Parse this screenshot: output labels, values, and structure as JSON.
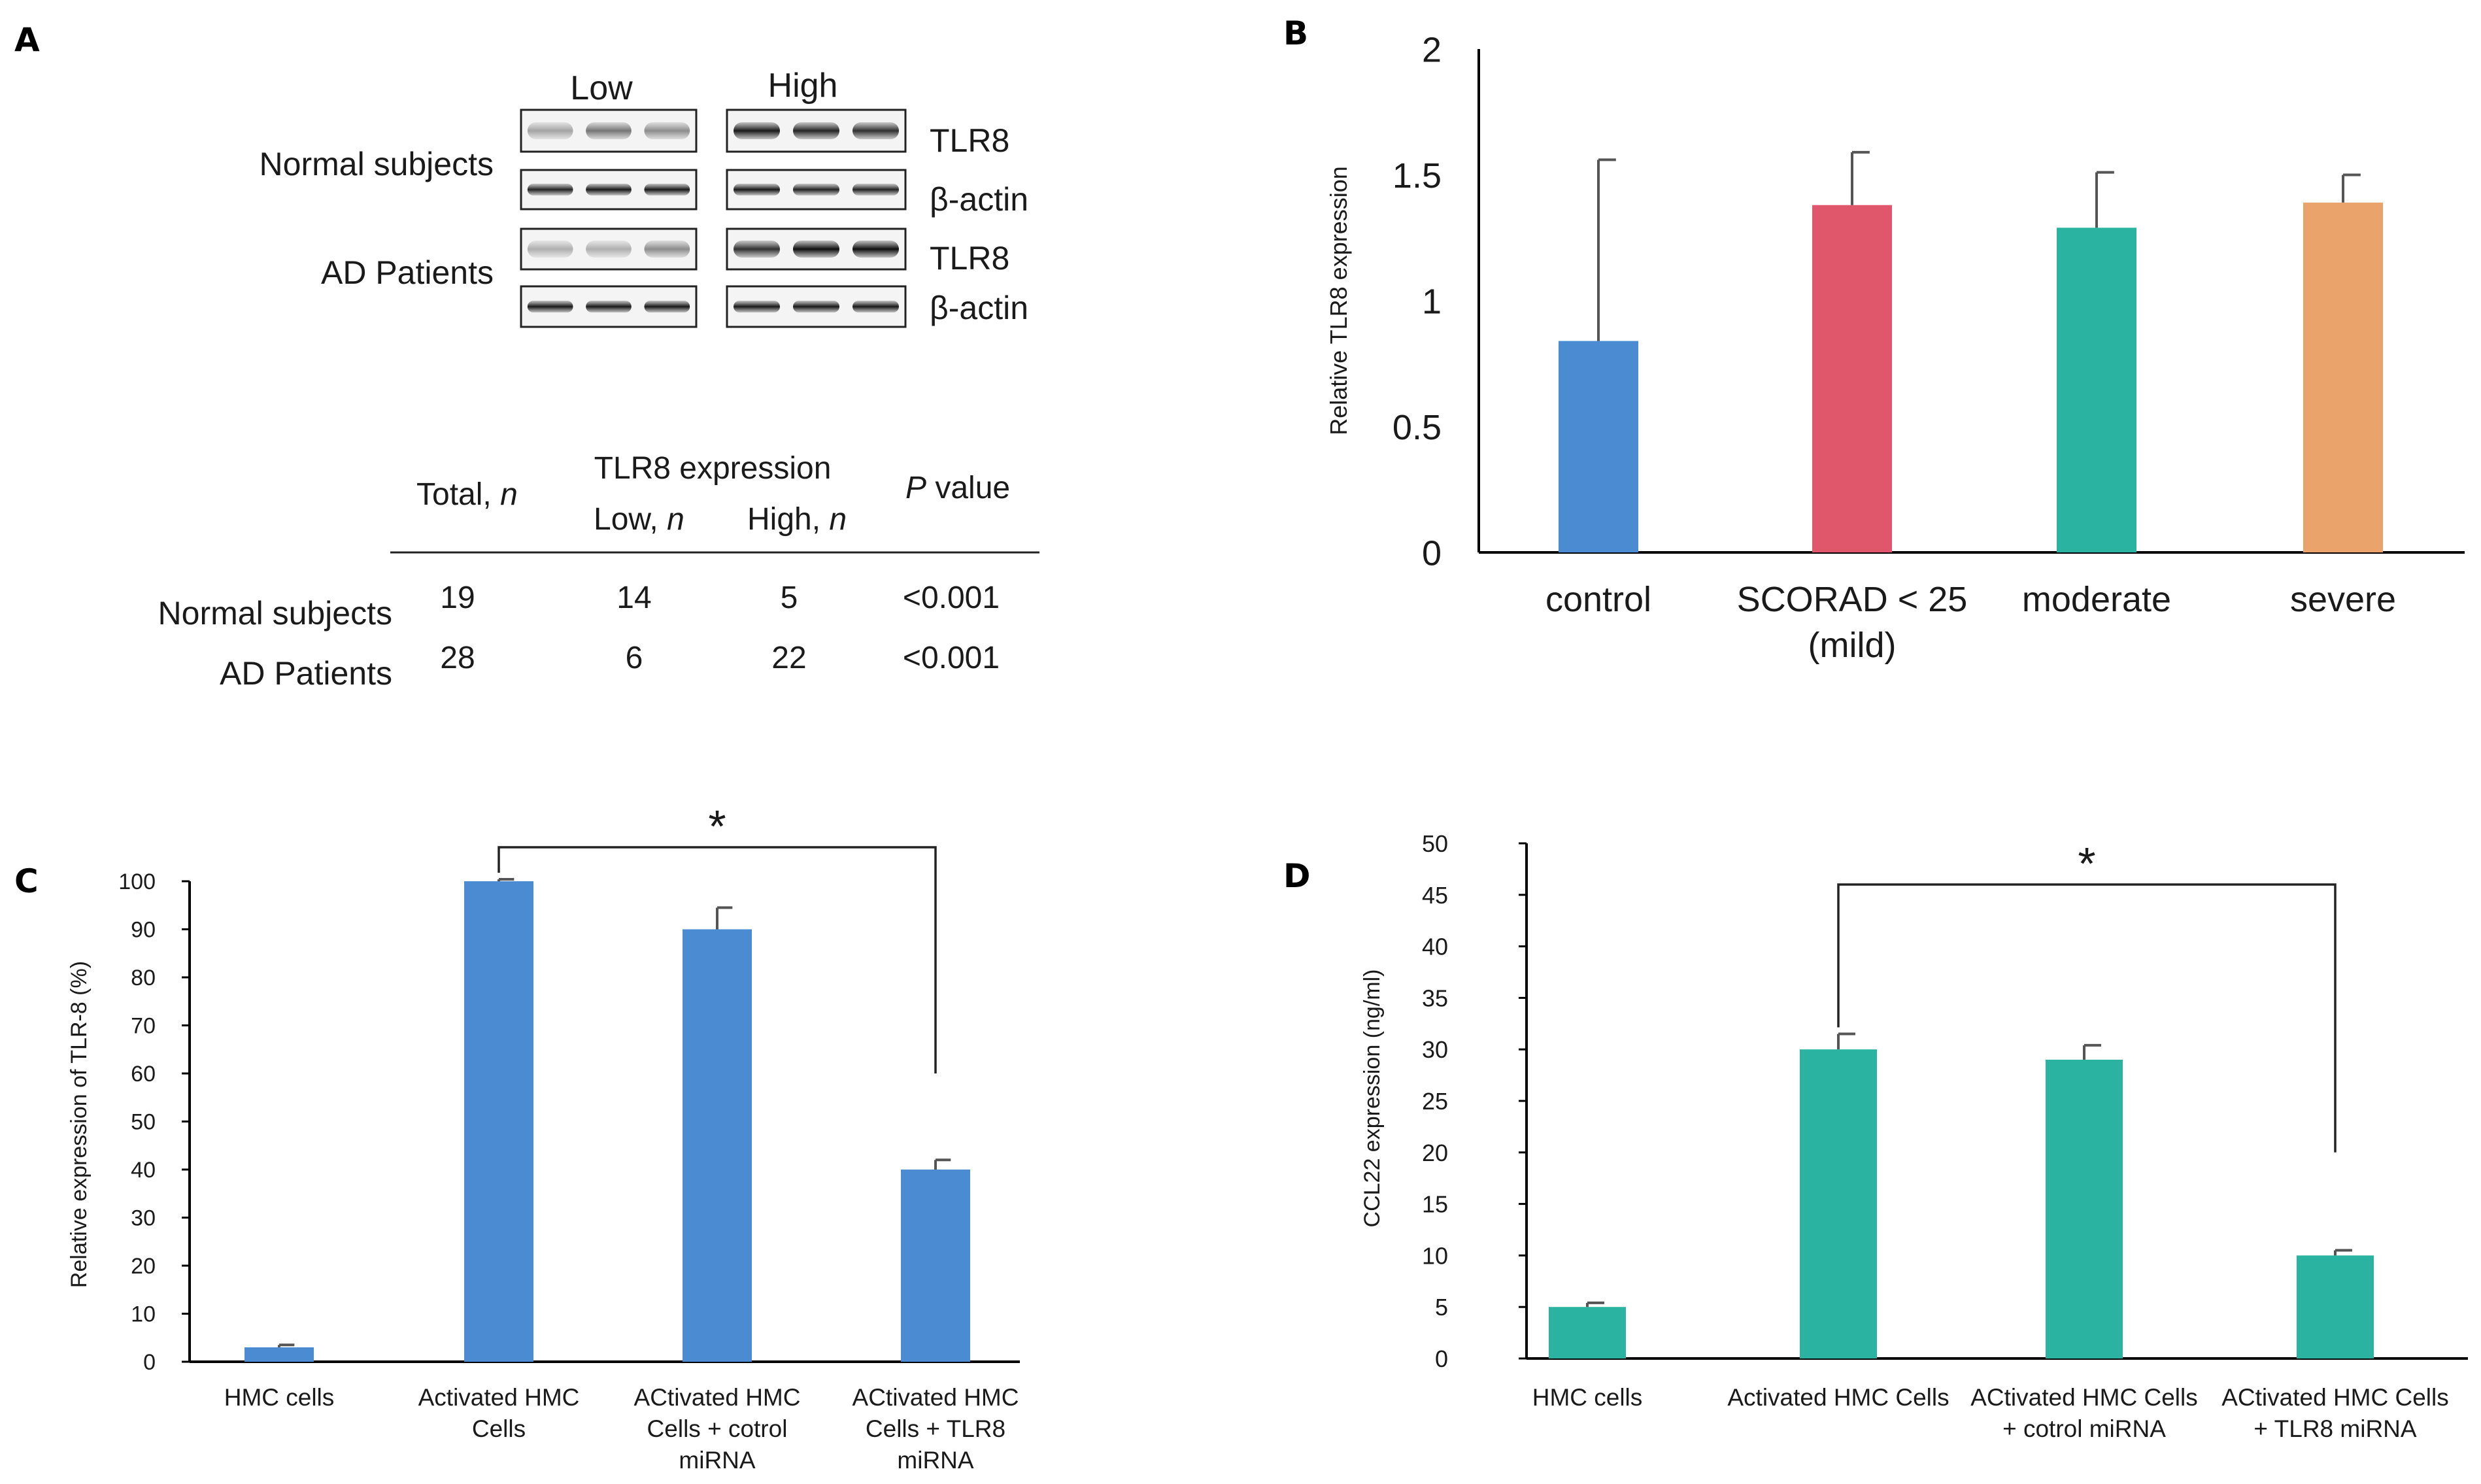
{
  "panel_a": {
    "letter": "A",
    "blot": {
      "col_low": "Low",
      "col_high": "High",
      "groups": [
        {
          "label": "Normal subjects",
          "rows": [
            "TLR8",
            "β-actin"
          ]
        },
        {
          "label": "AD Patients",
          "rows": [
            "TLR8",
            "β-actin"
          ]
        }
      ]
    },
    "table": {
      "header_total": "Total, ",
      "header_n": "n",
      "header_group": "TLR8 expression",
      "header_low": "Low, ",
      "header_high": "High, ",
      "header_p_italic": "P",
      "header_p": " value",
      "rows": [
        {
          "label": "Normal subjects",
          "total": "19",
          "low": "14",
          "high": "5",
          "p": "<0.001"
        },
        {
          "label": "AD Patients",
          "total": "28",
          "low": "6",
          "high": "22",
          "p": "<0.001"
        }
      ]
    }
  },
  "chart_data": [
    {
      "id": "B",
      "panel_letter": "B",
      "type": "bar",
      "title": "",
      "xlabel": "",
      "ylabel": "Relative TLR8 expression",
      "categories": [
        "control",
        "SCORAD < 25 (mild)",
        "moderate",
        "severe"
      ],
      "category_lines": [
        [
          "control"
        ],
        [
          "SCORAD < 25",
          "(mild)"
        ],
        [
          "moderate"
        ],
        [
          "severe"
        ]
      ],
      "values": [
        0.84,
        1.38,
        1.29,
        1.39
      ],
      "errors": [
        0.72,
        0.21,
        0.22,
        0.11
      ],
      "colors": [
        "#4a8bd2",
        "#e0566a",
        "#2ab3a1",
        "#eaa46b"
      ],
      "ylim": [
        0,
        2
      ],
      "yticks": [
        "0",
        "0.5",
        "1",
        "1.5",
        "2"
      ],
      "grid": false
    },
    {
      "id": "C",
      "panel_letter": "C",
      "type": "bar",
      "title": "",
      "xlabel": "",
      "ylabel": "Relative expression of TLR-8 (%)",
      "categories": [
        "HMC cells",
        "Activated HMC Cells",
        "ACtivated HMC Cells + cotrol miRNA",
        "ACtivated HMC Cells + TLR8 miRNA"
      ],
      "category_lines": [
        [
          "HMC cells"
        ],
        [
          "Activated HMC",
          "Cells"
        ],
        [
          "ACtivated HMC",
          "Cells + cotrol",
          "miRNA"
        ],
        [
          "ACtivated HMC",
          "Cells + TLR8",
          "miRNA"
        ]
      ],
      "values": [
        3,
        100,
        90,
        40
      ],
      "errors": [
        0.5,
        0.4,
        4.5,
        2
      ],
      "colors": [
        "#4a8bd2",
        "#4a8bd2",
        "#4a8bd2",
        "#4a8bd2"
      ],
      "ylim": [
        0,
        100
      ],
      "yticks": [
        "0",
        "10",
        "20",
        "30",
        "40",
        "50",
        "60",
        "70",
        "80",
        "90",
        "100"
      ],
      "grid": false,
      "significance": {
        "from": 1,
        "to": 3,
        "label": "*"
      }
    },
    {
      "id": "D",
      "panel_letter": "D",
      "type": "bar",
      "title": "",
      "xlabel": "",
      "ylabel": "CCL22  expression (ng/ml)",
      "categories": [
        "HMC cells",
        "Activated HMC Cells",
        "ACtivated HMC Cells + cotrol miRNA",
        "ACtivated HMC Cells + TLR8 miRNA"
      ],
      "category_lines": [
        [
          "HMC cells"
        ],
        [
          "Activated HMC Cells"
        ],
        [
          "ACtivated HMC Cells",
          "+ cotrol miRNA"
        ],
        [
          "ACtivated HMC Cells",
          "+ TLR8 miRNA"
        ]
      ],
      "values": [
        5,
        30,
        29,
        10
      ],
      "errors": [
        0.4,
        1.5,
        1.4,
        0.5
      ],
      "colors": [
        "#2ab3a1",
        "#2ab3a1",
        "#2ab3a1",
        "#2ab3a1"
      ],
      "ylim": [
        0,
        50
      ],
      "yticks": [
        "0",
        "5",
        "10",
        "15",
        "20",
        "25",
        "30",
        "35",
        "40",
        "45",
        "50"
      ],
      "grid": false,
      "significance": {
        "from": 1,
        "to": 3,
        "label": "*"
      }
    }
  ]
}
